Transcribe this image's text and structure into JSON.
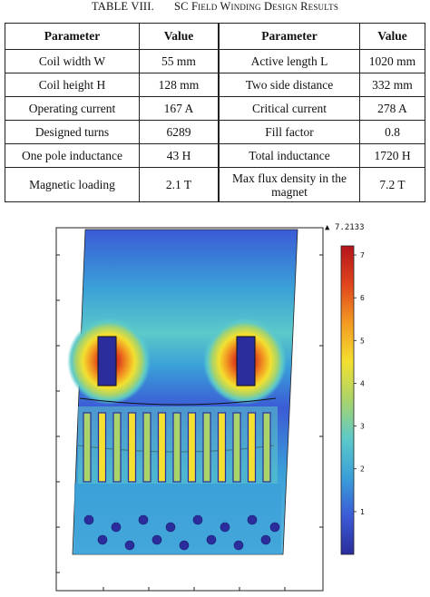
{
  "table": {
    "caption_number": "TABLE VIII.",
    "caption_title": "SC Field Winding Design Results",
    "headers": [
      "Parameter",
      "Value",
      "Parameter",
      "Value"
    ],
    "rows": [
      [
        "Coil width W",
        "55 mm",
        "Active length L",
        "1020 mm"
      ],
      [
        "Coil height H",
        "128 mm",
        "Two side distance",
        "332 mm"
      ],
      [
        "Operating current",
        "167 A",
        "Critical current",
        "278 A"
      ],
      [
        "Designed turns",
        "6289",
        "Fill factor",
        "0.8"
      ],
      [
        "One pole inductance",
        "43 H",
        "Total inductance",
        "1720 H"
      ],
      [
        "Magnetic loading",
        "2.1 T",
        "Max flux density in the magnet",
        "7.2 T"
      ]
    ]
  },
  "figure": {
    "max_label": "7.2133",
    "max_marker": "▲",
    "colorbar_ticks": [
      "7",
      "6",
      "5",
      "4",
      "3",
      "2",
      "1"
    ],
    "colorbar_min": 0,
    "colorbar_max": 7.2133,
    "colormap": [
      "#2b2d9c",
      "#3b5bd6",
      "#3aa0d8",
      "#5cc9c9",
      "#a9d46a",
      "#f3e030",
      "#f39a22",
      "#e0451c",
      "#b3151b"
    ]
  }
}
